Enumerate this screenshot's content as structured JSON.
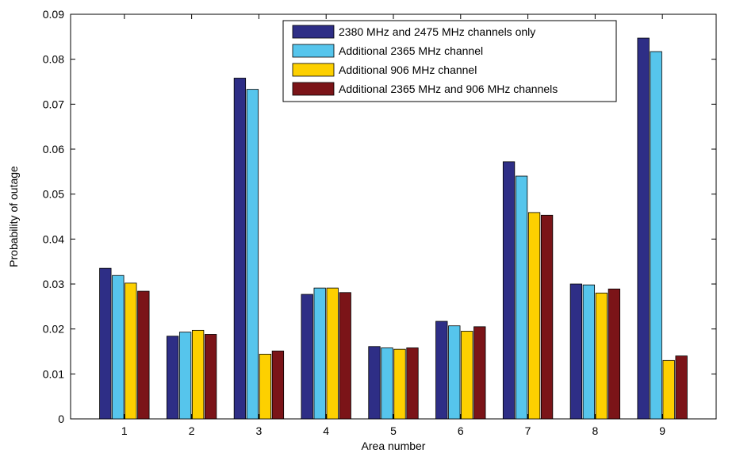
{
  "chart_data": {
    "type": "bar",
    "title": "",
    "xlabel": "Area number",
    "ylabel": "Probability of outage",
    "categories": [
      "1",
      "2",
      "3",
      "4",
      "5",
      "6",
      "7",
      "8",
      "9"
    ],
    "ylim": [
      0,
      0.09
    ],
    "yticks": [
      "0",
      "0.01",
      "0.02",
      "0.03",
      "0.04",
      "0.05",
      "0.06",
      "0.07",
      "0.08",
      "0.09"
    ],
    "ytick_values": [
      0,
      0.01,
      0.02,
      0.03,
      0.04,
      0.05,
      0.06,
      0.07,
      0.08,
      0.09
    ],
    "grid": false,
    "legend_position": "top-right",
    "series": [
      {
        "name": "2380 MHz and 2475 MHz channels only",
        "color": "#2e2e86",
        "values": [
          0.0335,
          0.0184,
          0.0758,
          0.0277,
          0.0161,
          0.0217,
          0.0572,
          0.03,
          0.0847
        ]
      },
      {
        "name": "Additional 2365 MHz channel",
        "color": "#56c5ec",
        "values": [
          0.0319,
          0.0193,
          0.0733,
          0.0291,
          0.0158,
          0.0207,
          0.054,
          0.0298,
          0.0817
        ]
      },
      {
        "name": "Additional 906 MHz channel",
        "color": "#fdd000",
        "values": [
          0.0302,
          0.0197,
          0.0144,
          0.0291,
          0.0155,
          0.0195,
          0.0459,
          0.028,
          0.013
        ]
      },
      {
        "name": "Additional 2365 MHz and 906 MHz channels",
        "color": "#7b1418",
        "values": [
          0.0284,
          0.0188,
          0.0151,
          0.0281,
          0.0158,
          0.0205,
          0.0453,
          0.0289,
          0.014
        ]
      }
    ]
  }
}
